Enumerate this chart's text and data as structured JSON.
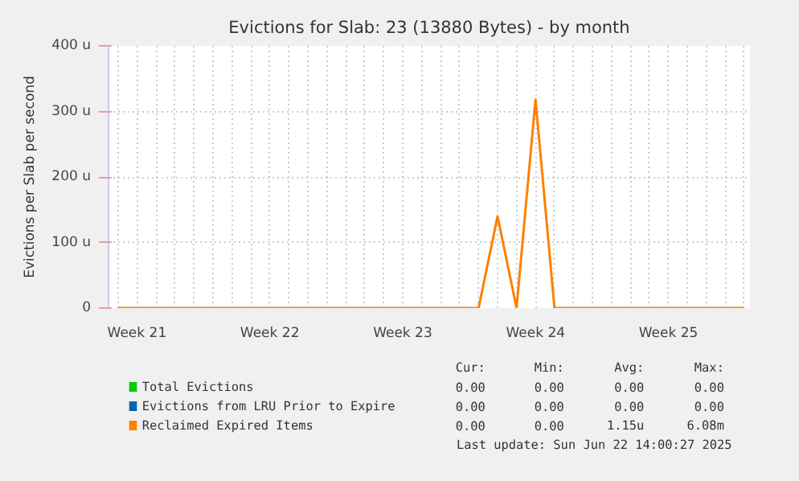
{
  "chart_data": {
    "type": "line",
    "title": "Evictions for Slab: 23 (13880 Bytes) - by month",
    "ylabel": "Evictions per Slab per second",
    "categories": [
      null,
      "Week 21",
      null,
      null,
      null,
      null,
      null,
      null,
      "Week 22",
      null,
      null,
      null,
      null,
      null,
      null,
      "Week 23",
      null,
      null,
      null,
      null,
      null,
      null,
      "Week 24",
      null,
      null,
      null,
      null,
      null,
      null,
      "Week 25",
      null,
      null,
      null,
      null
    ],
    "series": [
      {
        "name": "Total Evictions",
        "color": "#00cc00",
        "values": [
          null,
          null,
          null,
          null,
          null,
          null,
          null,
          null,
          null,
          null,
          null,
          null,
          null,
          null,
          null,
          null,
          null,
          null,
          null,
          null,
          null,
          null,
          null,
          null,
          null,
          null,
          null,
          null,
          null,
          null,
          null,
          null,
          null,
          null
        ]
      },
      {
        "name": "Evictions from LRU Prior to Expire",
        "color": "#0066b3",
        "values": [
          null,
          null,
          null,
          null,
          null,
          null,
          null,
          null,
          null,
          null,
          null,
          null,
          null,
          null,
          null,
          null,
          null,
          null,
          null,
          null,
          null,
          null,
          null,
          null,
          null,
          null,
          null,
          null,
          null,
          null,
          null,
          null,
          null,
          null
        ]
      },
      {
        "name": "Reclaimed Expired Items",
        "color": "#ff8000",
        "values": [
          0,
          0,
          0,
          0,
          0,
          0,
          0,
          0,
          0,
          0,
          0,
          0,
          0,
          0,
          0,
          0,
          0,
          0,
          0,
          0,
          140,
          0,
          318,
          0,
          0,
          0,
          0,
          0,
          0,
          0,
          0,
          0,
          0,
          0
        ]
      }
    ],
    "ylim": [
      0,
      400
    ],
    "yticks": [
      0,
      {
        "value": 100,
        "label": "100 u"
      },
      {
        "value": 200,
        "label": "200 u"
      },
      {
        "value": 300,
        "label": "300 u"
      },
      {
        "value": 400,
        "label": "400 u"
      }
    ],
    "grid": true,
    "legend": "bottom",
    "annotations": [
      "Cur:",
      "Min:",
      "Avg:",
      "Max:",
      "0.00",
      "0.00",
      "0.00",
      "0.00",
      "0.00",
      "0.00",
      "0.00",
      "0.00",
      "0.00",
      "0.00",
      "1.15u",
      "6.08m",
      "Last update: Sun Jun 22 14:00:27 2025"
    ]
  }
}
